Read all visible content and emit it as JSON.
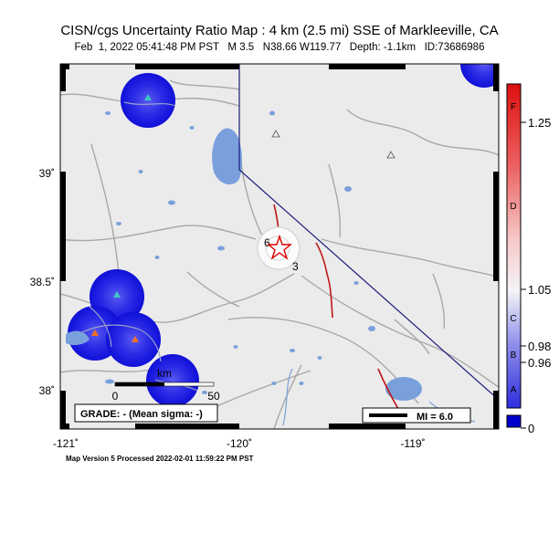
{
  "header": {
    "title": "CISN/cgs Uncertainty Ratio Map : 4 km (2.5 mi) SSE of Markleeville, CA",
    "subtitle": "Feb  1, 2022 05:41:48 PM PST   M 3.5   N38.66 W119.77   Depth: -1.1km   ID:73686986"
  },
  "map": {
    "lon_ticks": [
      "-121˚",
      "-120˚",
      "-119˚"
    ],
    "lat_ticks": [
      "39˚",
      "38.5˚",
      "38˚"
    ],
    "scale_bar": {
      "title": "km",
      "start": "0",
      "end": "50"
    },
    "grade_box": "GRADE: - (Mean sigma: -)",
    "mi_legend": "MI = 6.0",
    "contour_labels": [
      "6",
      "3"
    ]
  },
  "colorbar": {
    "right_labels": [
      "1.25",
      "1.05",
      "0.98",
      "0.96",
      "0"
    ],
    "grade_letters": [
      "F",
      "D",
      "C",
      "B",
      "A"
    ]
  },
  "footer": "Map Version 5 Processed 2022-02-01 11:59:22 PM PST",
  "colors": {
    "land": "#ebebeb",
    "water": "#7aa0dc",
    "roads": "#a8a8a8",
    "faults": "#c01818",
    "border": "#1c1c7a",
    "station_blob": "#1a1ae0",
    "epicenter": "#e00000"
  }
}
